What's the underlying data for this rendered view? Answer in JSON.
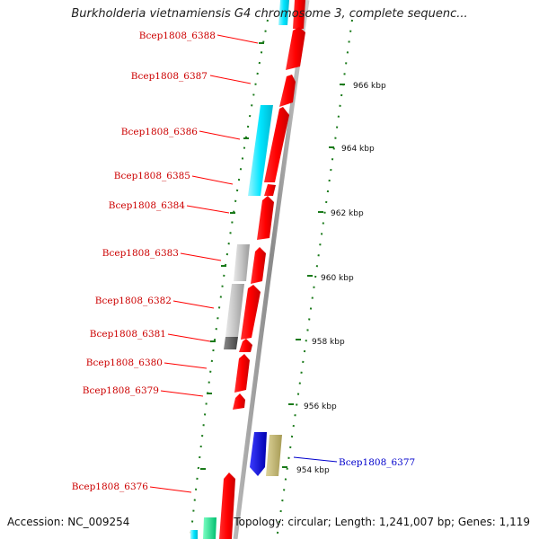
{
  "title": "Burkholderia vietnamiensis G4 chromosome 3, complete sequenc...",
  "accession": "Accession: NC_009254",
  "topology": "Topology: circular; Length: 1,241,007 bp; Genes: 1,119",
  "scale_ticks": [
    "966 kbp",
    "964 kbp",
    "962 kbp",
    "960 kbp",
    "958 kbp",
    "956 kbp",
    "954 kbp"
  ],
  "genes": [
    {
      "label": "Bcep1808_6388",
      "color": "#ff0000"
    },
    {
      "label": "Bcep1808_6387",
      "color": "#ff0000"
    },
    {
      "label": "Bcep1808_6386",
      "color": "#ff0000"
    },
    {
      "label": "Bcep1808_6385",
      "color": "#ff0000"
    },
    {
      "label": "Bcep1808_6384",
      "color": "#ff0000"
    },
    {
      "label": "Bcep1808_6383",
      "color": "#ff0000"
    },
    {
      "label": "Bcep1808_6382",
      "color": "#ff0000"
    },
    {
      "label": "Bcep1808_6381",
      "color": "#ff0000"
    },
    {
      "label": "Bcep1808_6380",
      "color": "#ff0000"
    },
    {
      "label": "Bcep1808_6379",
      "color": "#ff0000"
    },
    {
      "label": "Bcep1808_6377",
      "color": "#0000cc"
    },
    {
      "label": "Bcep1808_6376",
      "color": "#ff0000"
    }
  ],
  "colors": {
    "forward_cds": "#ff0000",
    "reverse_cds": "#0000ee",
    "backbone": "#999999",
    "cog_cyan": "#00e5ff",
    "cog_gray": "#bbbbbb",
    "cog_darkgray": "#666666",
    "cog_khaki": "#bdb06b",
    "cog_green": "#00e08a",
    "tick_green": "#1a7a1a",
    "label_forward": "#cc0000",
    "label_reverse": "#0000cc"
  }
}
